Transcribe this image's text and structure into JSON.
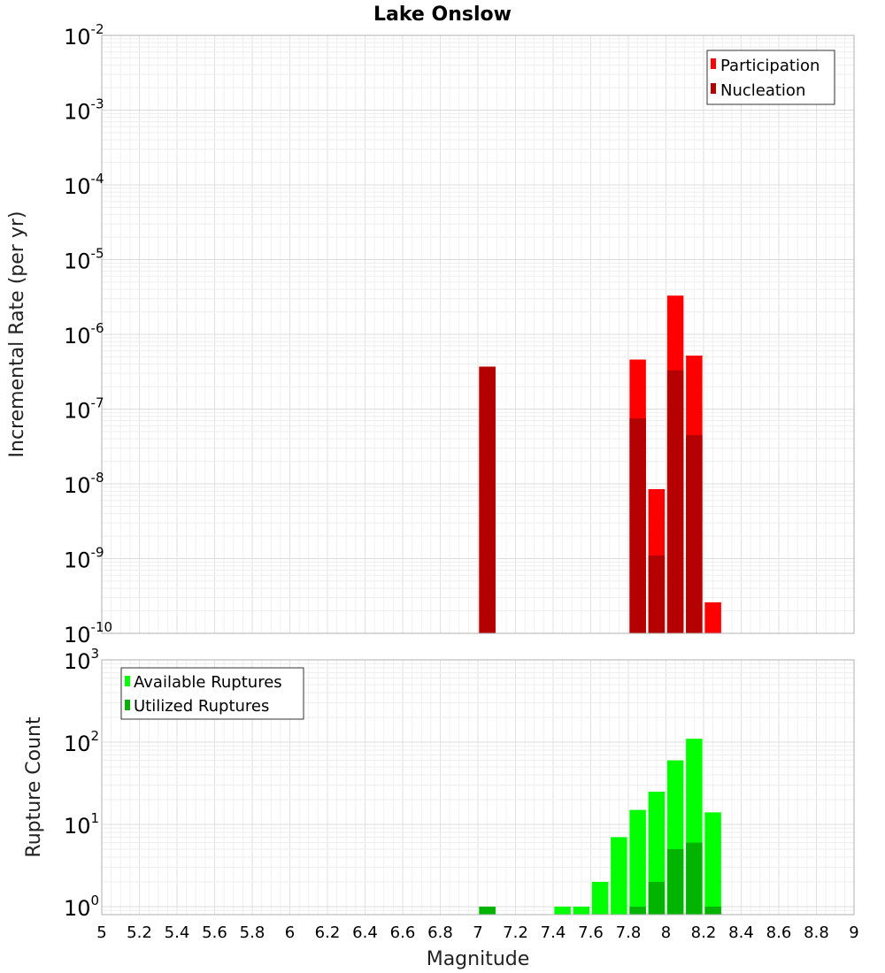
{
  "chart_data": [
    {
      "type": "bar",
      "title": "Lake Onslow",
      "ylabel": "Incremental Rate (per yr)",
      "xlabel": "",
      "yscale": "log",
      "ylim": [
        1e-10,
        0.01
      ],
      "xlim": [
        5,
        9
      ],
      "grid": true,
      "legend_position": "top-right",
      "x": [
        7.05,
        7.85,
        7.95,
        8.05,
        8.15,
        8.25
      ],
      "series": [
        {
          "name": "Participation",
          "color": "#ff0000",
          "values": [
            3.7e-07,
            4.6e-07,
            8.5e-09,
            3.3e-06,
            5.2e-07,
            2.6e-10
          ]
        },
        {
          "name": "Nucleation",
          "color": "#b40000",
          "values": [
            3.7e-07,
            7.5e-08,
            1.1e-09,
            3.3e-07,
            4.5e-08,
            0
          ]
        }
      ]
    },
    {
      "type": "bar",
      "title": "",
      "ylabel": "Rupture Count",
      "xlabel": "Magnitude",
      "yscale": "log",
      "ylim": [
        0.8,
        1000
      ],
      "xlim": [
        5,
        9
      ],
      "grid": true,
      "legend_position": "top-left",
      "x": [
        7.05,
        7.45,
        7.55,
        7.65,
        7.75,
        7.85,
        7.95,
        8.05,
        8.15,
        8.25
      ],
      "series": [
        {
          "name": "Available Ruptures",
          "color": "#00ff00",
          "values": [
            1,
            1,
            1,
            2,
            7,
            15,
            25,
            60,
            110,
            14
          ]
        },
        {
          "name": "Utilized Ruptures",
          "color": "#00b400",
          "values": [
            1,
            0,
            0,
            0,
            0,
            1,
            2,
            5,
            6,
            1
          ]
        }
      ]
    }
  ],
  "x_ticks": [
    "5",
    "5.2",
    "5.4",
    "5.6",
    "5.8",
    "6",
    "6.2",
    "6.4",
    "6.6",
    "6.8",
    "7",
    "7.2",
    "7.4",
    "7.6",
    "7.8",
    "8",
    "8.2",
    "8.4",
    "8.6",
    "8.8",
    "9"
  ],
  "top_y_ticks": [
    {
      "base": "10",
      "exp": "-10",
      "value": 1e-10
    },
    {
      "base": "10",
      "exp": "-9",
      "value": 1e-09
    },
    {
      "base": "10",
      "exp": "-8",
      "value": 1e-08
    },
    {
      "base": "10",
      "exp": "-7",
      "value": 1e-07
    },
    {
      "base": "10",
      "exp": "-6",
      "value": 1e-06
    },
    {
      "base": "10",
      "exp": "-5",
      "value": 1e-05
    },
    {
      "base": "10",
      "exp": "-4",
      "value": 0.0001
    },
    {
      "base": "10",
      "exp": "-3",
      "value": 0.001
    },
    {
      "base": "10",
      "exp": "-2",
      "value": 0.01
    }
  ],
  "bottom_y_ticks": [
    {
      "base": "10",
      "exp": "0",
      "value": 1
    },
    {
      "base": "10",
      "exp": "1",
      "value": 10
    },
    {
      "base": "10",
      "exp": "2",
      "value": 100
    },
    {
      "base": "10",
      "exp": "3",
      "value": 1000
    }
  ]
}
